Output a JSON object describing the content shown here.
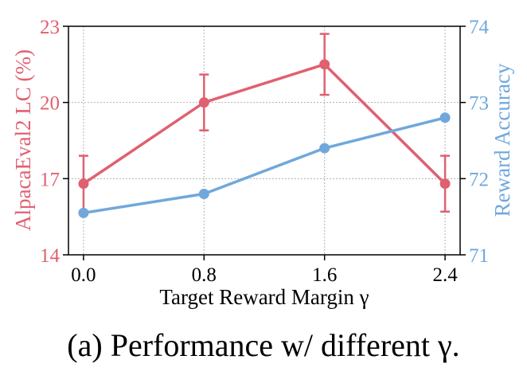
{
  "chart_data": {
    "type": "line",
    "title": "",
    "caption": "(a) Performance w/ different γ.",
    "xlabel": "Target Reward Margin γ",
    "x": [
      0.0,
      0.8,
      1.6,
      2.4
    ],
    "xtick_labels": [
      "0.0",
      "0.8",
      "1.6",
      "2.4"
    ],
    "xlim": [
      -0.1,
      2.5
    ],
    "grid": true,
    "y_left": {
      "label": "AlpacaEval2 LC (%)",
      "color": "#e06070",
      "ylim": [
        14,
        23
      ],
      "ticks": [
        14,
        17,
        20,
        23
      ],
      "tick_labels": [
        "14",
        "17",
        "20",
        "23"
      ]
    },
    "y_right": {
      "label": "Reward Accuracy",
      "color": "#6fa8dc",
      "ylim": [
        71,
        74
      ],
      "ticks": [
        71,
        72,
        73,
        74
      ],
      "tick_labels": [
        "71",
        "72",
        "73",
        "74"
      ]
    },
    "series": [
      {
        "axis": "left",
        "color": "#e06070",
        "values": [
          16.8,
          20.0,
          21.5,
          16.8
        ],
        "error": [
          1.1,
          1.1,
          1.2,
          1.1
        ]
      },
      {
        "axis": "right",
        "color": "#6fa8dc",
        "values": [
          71.55,
          71.8,
          72.4,
          72.8
        ]
      }
    ]
  }
}
